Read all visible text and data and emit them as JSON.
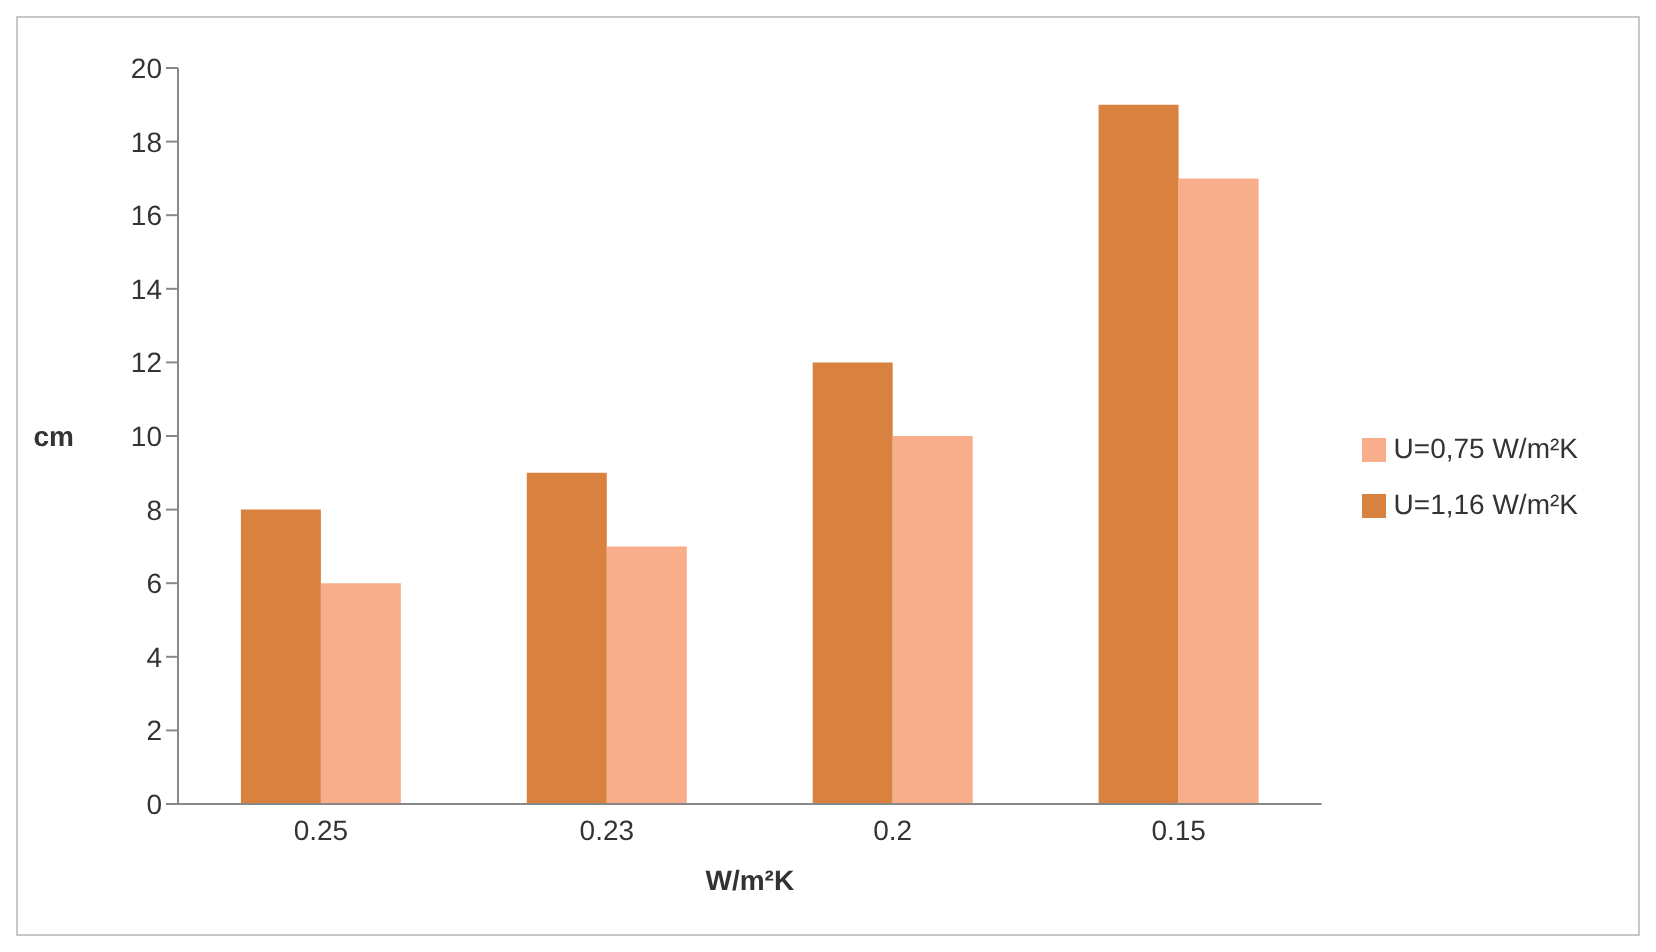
{
  "chart_data": {
    "type": "bar",
    "xlabel": "W/m²K",
    "ylabel": "cm",
    "categories": [
      "0.25",
      "0.23",
      "0.2",
      "0.15"
    ],
    "series": [
      {
        "name": "U=1,16 W/m²K",
        "color": "#d9823f",
        "values": [
          8,
          9,
          12,
          19
        ]
      },
      {
        "name": "U=0,75 W/m²K",
        "color": "#f8ae8b",
        "values": [
          6,
          7,
          10,
          17
        ]
      }
    ],
    "ylim": [
      0,
      20
    ],
    "yticks": [
      0,
      2,
      4,
      6,
      8,
      10,
      12,
      14,
      16,
      18,
      20
    ],
    "grid": false,
    "legend": "right"
  }
}
